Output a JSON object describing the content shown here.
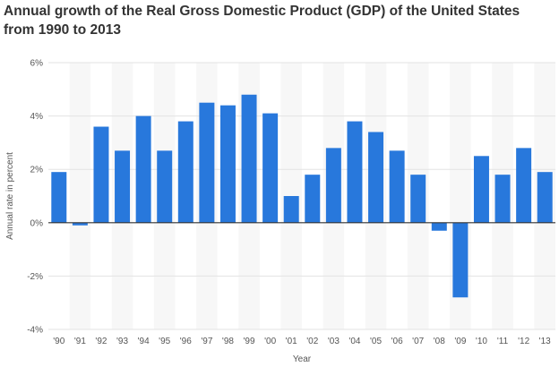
{
  "chart_data": {
    "type": "bar",
    "title": "Annual growth of the Real Gross Domestic Product (GDP) of the United States from 1990 to 2013",
    "xlabel": "Year",
    "ylabel": "Annual rate in percent",
    "categories": [
      "'90",
      "'91",
      "'92",
      "'93",
      "'94",
      "'95",
      "'96",
      "'97",
      "'98",
      "'99",
      "'00",
      "'01",
      "'02",
      "'03",
      "'04",
      "'05",
      "'06",
      "'07",
      "'08",
      "'09",
      "'10",
      "'11",
      "'12",
      "'13"
    ],
    "series": [
      {
        "values": [
          1.9,
          -0.1,
          3.6,
          2.7,
          4.0,
          2.7,
          3.8,
          4.5,
          4.4,
          4.8,
          4.1,
          1.0,
          1.8,
          2.8,
          3.8,
          3.4,
          2.7,
          1.8,
          -0.3,
          -2.8,
          2.5,
          1.8,
          2.8,
          1.9
        ]
      }
    ],
    "yticks": [
      -4,
      -2,
      0,
      2,
      4,
      6
    ],
    "ytick_labels": [
      "-4%",
      "-2%",
      "0%",
      "2%",
      "4%",
      "6%"
    ],
    "ylim": [
      -4,
      6
    ],
    "grid": true,
    "bar_color": "#2878dc",
    "band_color": "#f7f7f7",
    "zero_line_color": "#333333"
  }
}
